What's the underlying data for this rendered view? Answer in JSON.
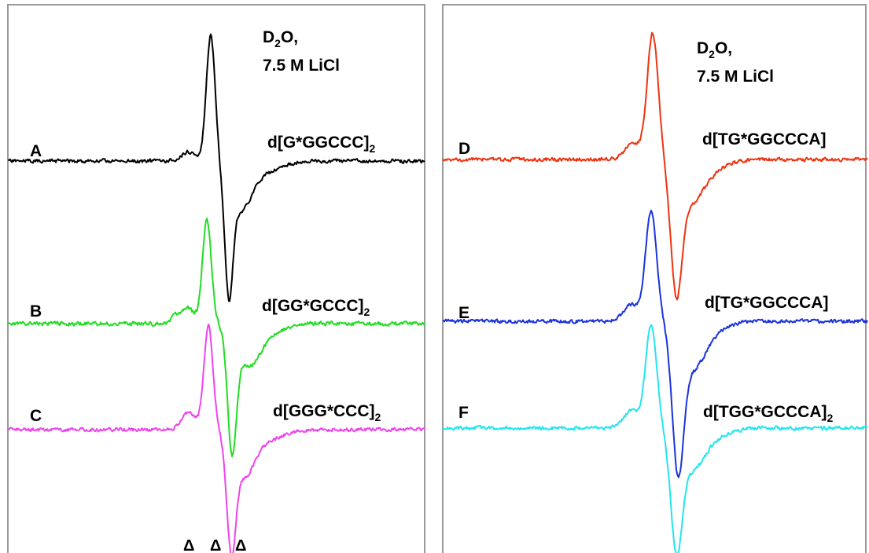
{
  "chart_data": [
    {
      "type": "line",
      "panel": "left",
      "solvent": {
        "line1_main": "D",
        "line1_sub": "2",
        "line1_tail": "O,",
        "line2": "7.5 M LiCl"
      },
      "markers": {
        "symbol": "Δ",
        "count": 3
      },
      "axes": {
        "ticks": false,
        "grid": false
      },
      "series": [
        {
          "name": "d[G*GGCCC]",
          "name_sub": "2",
          "letter": "A",
          "color": "#000000",
          "offset": 205,
          "peaks": [
            {
              "x": 268,
              "a": 162,
              "w": 8
            },
            {
              "x": 240,
              "a": 12,
              "w": 12
            },
            {
              "x": 291,
              "a": -140,
              "w": 7
            },
            {
              "x": 305,
              "a": -58,
              "w": 20
            },
            {
              "x": 335,
              "a": -14,
              "w": 30
            }
          ],
          "noise_amp": 2.0,
          "noise_seed": 11
        },
        {
          "name": "d[GG*GCCC]",
          "name_sub": "2",
          "letter": "B",
          "color": "#22dd22",
          "offset": 412,
          "peaks": [
            {
              "x": 263,
              "a": 132,
              "w": 8
            },
            {
              "x": 238,
              "a": 20,
              "w": 12
            },
            {
              "x": 222,
              "a": 8,
              "w": 5
            },
            {
              "x": 295,
              "a": -150,
              "w": 8
            },
            {
              "x": 315,
              "a": -48,
              "w": 20
            },
            {
              "x": 340,
              "a": -14,
              "w": 26
            }
          ],
          "noise_amp": 2.2,
          "noise_seed": 23
        },
        {
          "name": "d[GGG*CCC]",
          "name_sub": "2",
          "letter": "C",
          "color": "#ee44ee",
          "offset": 547,
          "peaks": [
            {
              "x": 265,
              "a": 132,
              "w": 8
            },
            {
              "x": 240,
              "a": 22,
              "w": 13
            },
            {
              "x": 294,
              "a": -135,
              "w": 8
            },
            {
              "x": 310,
              "a": -55,
              "w": 18
            },
            {
              "x": 338,
              "a": -14,
              "w": 28
            }
          ],
          "noise_amp": 2.0,
          "noise_seed": 37
        }
      ]
    },
    {
      "type": "line",
      "panel": "right",
      "solvent": {
        "line1_main": "D",
        "line1_sub": "2",
        "line1_tail": "O,",
        "line2": "7.5 M LiCl"
      },
      "axes": {
        "ticks": false,
        "grid": false
      },
      "series": [
        {
          "name": "d[TG*GGCCCA]",
          "name_sub": "",
          "letter": "D",
          "color": "#ee3311",
          "offset": 203,
          "peaks": [
            {
              "x": 830,
              "a": 160,
              "w": 10
            },
            {
              "x": 805,
              "a": 20,
              "w": 14
            },
            {
              "x": 860,
              "a": -150,
              "w": 10
            },
            {
              "x": 878,
              "a": -50,
              "w": 22
            },
            {
              "x": 905,
              "a": -12,
              "w": 28
            }
          ],
          "noise_amp": 2.0,
          "noise_seed": 51
        },
        {
          "name": "d[TG*GGCCCA]",
          "name_sub": "",
          "letter": "E",
          "color": "#1a33dd",
          "offset": 409,
          "peaks": [
            {
              "x": 828,
              "a": 140,
              "w": 10
            },
            {
              "x": 803,
              "a": 22,
              "w": 14
            },
            {
              "x": 862,
              "a": -170,
              "w": 10
            },
            {
              "x": 880,
              "a": -55,
              "w": 22
            },
            {
              "x": 905,
              "a": -12,
              "w": 28
            }
          ],
          "noise_amp": 2.0,
          "noise_seed": 67
        },
        {
          "name": "d[TGG*GCCCA]",
          "name_sub": "2",
          "letter": "F",
          "color": "#22e5ee",
          "offset": 545,
          "peaks": [
            {
              "x": 828,
              "a": 130,
              "w": 10
            },
            {
              "x": 803,
              "a": 22,
              "w": 14
            },
            {
              "x": 860,
              "a": -135,
              "w": 10
            },
            {
              "x": 878,
              "a": -50,
              "w": 22
            },
            {
              "x": 905,
              "a": -12,
              "w": 28
            }
          ],
          "noise_amp": 2.0,
          "noise_seed": 83
        }
      ]
    }
  ]
}
